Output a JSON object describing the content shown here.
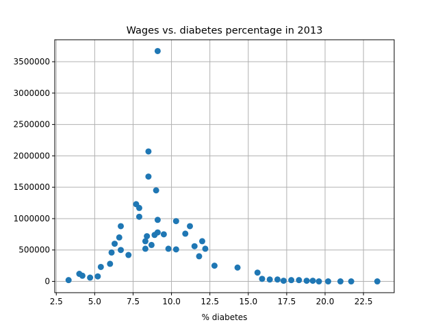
{
  "chart_data": {
    "type": "scatter",
    "title": "Wages vs. diabetes percentage in 2013",
    "xlabel": "% diabetes",
    "ylabel": "",
    "xlim": [
      2.4,
      24.5
    ],
    "ylim": [
      -180000,
      3850000
    ],
    "x_ticks": [
      2.5,
      5.0,
      7.5,
      10.0,
      12.5,
      15.0,
      17.5,
      20.0,
      22.5
    ],
    "x_tick_labels": [
      "2.5",
      "5.0",
      "7.5",
      "10.0",
      "12.5",
      "15.0",
      "17.5",
      "20.0",
      "22.5"
    ],
    "y_ticks": [
      0,
      500000,
      1000000,
      1500000,
      2000000,
      2500000,
      3000000,
      3500000
    ],
    "y_tick_labels": [
      "0",
      "500000",
      "1000000",
      "1500000",
      "2000000",
      "2500000",
      "3000000",
      "3500000"
    ],
    "grid": true,
    "marker_color": "#1f77b4",
    "series": [
      {
        "points": [
          [
            9.1,
            3670000
          ],
          [
            8.5,
            2070000
          ],
          [
            8.5,
            1670000
          ],
          [
            9.0,
            1450000
          ],
          [
            7.7,
            1230000
          ],
          [
            7.9,
            1170000
          ],
          [
            7.9,
            1030000
          ],
          [
            9.1,
            980000
          ],
          [
            10.3,
            960000
          ],
          [
            6.7,
            880000
          ],
          [
            11.2,
            880000
          ],
          [
            9.1,
            780000
          ],
          [
            9.5,
            750000
          ],
          [
            8.9,
            740000
          ],
          [
            8.4,
            720000
          ],
          [
            10.9,
            760000
          ],
          [
            6.6,
            700000
          ],
          [
            8.3,
            640000
          ],
          [
            12.0,
            640000
          ],
          [
            6.3,
            600000
          ],
          [
            8.7,
            580000
          ],
          [
            11.5,
            560000
          ],
          [
            8.3,
            520000
          ],
          [
            9.8,
            520000
          ],
          [
            10.3,
            510000
          ],
          [
            12.2,
            520000
          ],
          [
            6.7,
            500000
          ],
          [
            6.1,
            460000
          ],
          [
            11.8,
            400000
          ],
          [
            12.8,
            250000
          ],
          [
            14.3,
            220000
          ],
          [
            15.6,
            140000
          ],
          [
            5.4,
            230000
          ],
          [
            6.0,
            280000
          ],
          [
            7.2,
            420000
          ],
          [
            3.3,
            20000
          ],
          [
            4.0,
            120000
          ],
          [
            4.2,
            90000
          ],
          [
            4.7,
            60000
          ],
          [
            5.2,
            80000
          ],
          [
            21.0,
            0
          ],
          [
            21.7,
            0
          ],
          [
            23.4,
            0
          ],
          [
            20.2,
            0
          ],
          [
            19.6,
            0
          ],
          [
            19.2,
            10000
          ],
          [
            18.8,
            10000
          ],
          [
            18.3,
            20000
          ],
          [
            17.8,
            20000
          ],
          [
            17.3,
            10000
          ],
          [
            16.9,
            30000
          ],
          [
            16.4,
            30000
          ],
          [
            15.9,
            40000
          ]
        ]
      }
    ]
  }
}
